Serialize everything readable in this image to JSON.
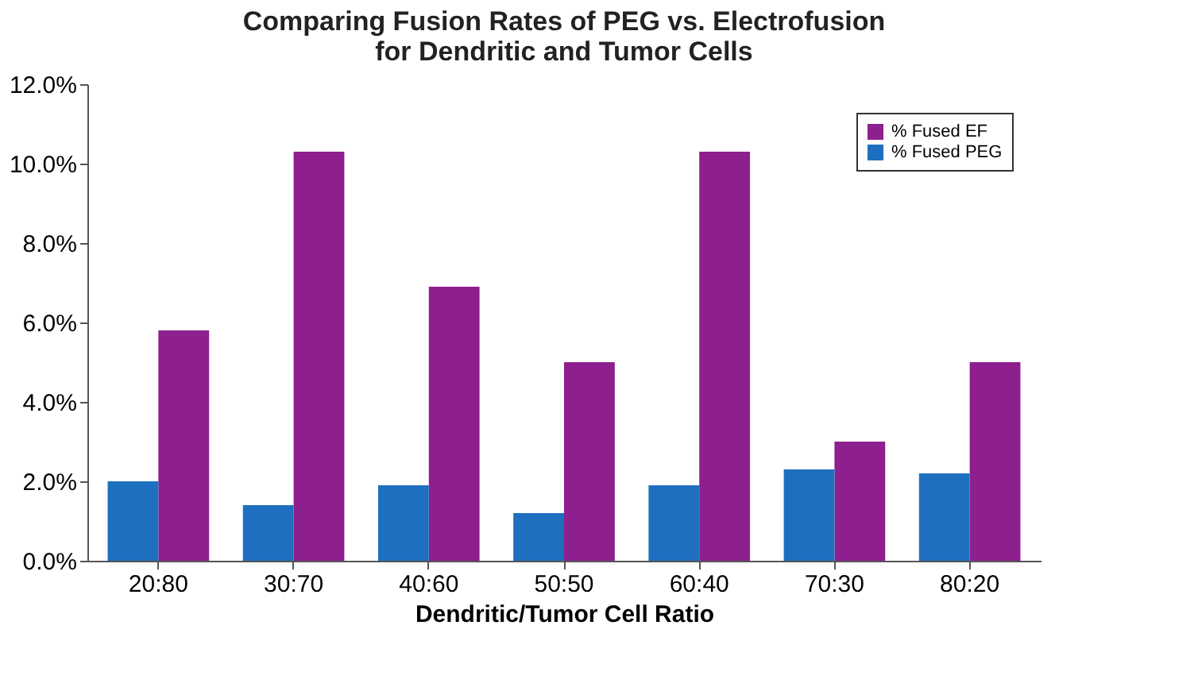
{
  "chart_data": {
    "type": "bar",
    "title": [
      "Comparing Fusion Rates of PEG vs. Electrofusion",
      "for Dendritic and Tumor Cells"
    ],
    "xlabel": "Dendritic/Tumor Cell Ratio",
    "categories": [
      "20:80",
      "30:70",
      "40:60",
      "50:50",
      "60:40",
      "70:30",
      "80:20"
    ],
    "series": [
      {
        "name": "% Fused EF",
        "color": "#8e1f8e",
        "values": [
          5.8,
          10.3,
          6.9,
          5.0,
          10.3,
          3.0,
          5.0
        ]
      },
      {
        "name": "% Fused PEG",
        "color": "#1f6fc0",
        "values": [
          2.0,
          1.4,
          1.9,
          1.2,
          1.9,
          2.3,
          2.2
        ]
      }
    ],
    "ylim": [
      0,
      12
    ],
    "yticks": [
      {
        "value": 0,
        "label": "0.0%"
      },
      {
        "value": 2,
        "label": "2.0%"
      },
      {
        "value": 4,
        "label": "4.0%"
      },
      {
        "value": 6,
        "label": "6.0%"
      },
      {
        "value": 8,
        "label": "8.0%"
      },
      {
        "value": 10,
        "label": "10.0%"
      },
      {
        "value": 12,
        "label": "12.0%"
      }
    ],
    "legend": "top right",
    "grid": false
  }
}
